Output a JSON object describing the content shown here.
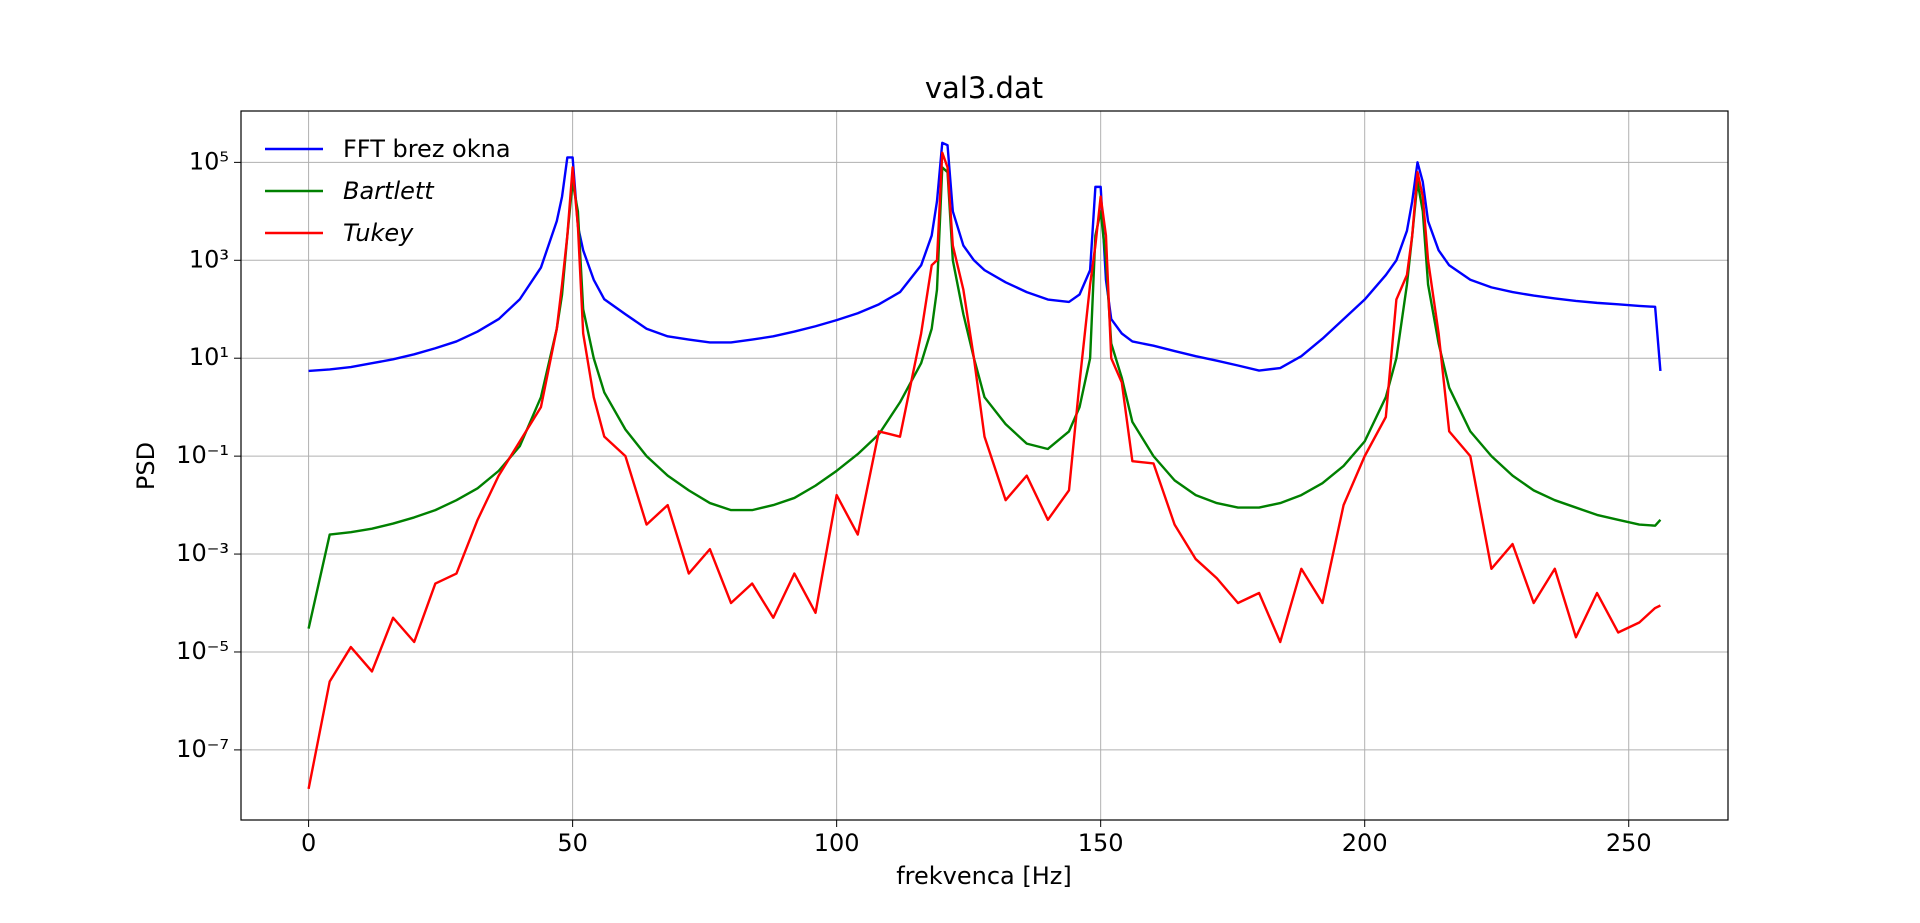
{
  "chart_data": {
    "type": "line",
    "title": "val3.dat",
    "xlabel": "frekvenca [Hz]",
    "ylabel": "PSD",
    "log_y": true,
    "grid": true,
    "legend": "upper left",
    "xlim": [
      -12.8,
      268.8
    ],
    "ylim": [
      3.7e-09,
      1120000.0
    ],
    "xticks": [
      0,
      50,
      100,
      150,
      200,
      250
    ],
    "yticks": [
      {
        "value": 1e-07,
        "label": "10⁻⁷"
      },
      {
        "value": 1e-05,
        "label": "10⁻⁵"
      },
      {
        "value": 0.001,
        "label": "10⁻³"
      },
      {
        "value": 0.1,
        "label": "10⁻¹"
      },
      {
        "value": 10,
        "label": "10¹"
      },
      {
        "value": 1000,
        "label": "10³"
      },
      {
        "value": 100000,
        "label": "10⁵"
      }
    ],
    "x": [
      0,
      4,
      8,
      12,
      16,
      20,
      24,
      28,
      32,
      36,
      40,
      44,
      47,
      48,
      49,
      50,
      51,
      52,
      54,
      56,
      60,
      64,
      68,
      72,
      76,
      80,
      84,
      88,
      92,
      96,
      100,
      104,
      108,
      112,
      116,
      118,
      119,
      120,
      121,
      122,
      124,
      126,
      128,
      132,
      136,
      140,
      144,
      146,
      148,
      149,
      150,
      151,
      152,
      154,
      156,
      160,
      164,
      168,
      172,
      176,
      180,
      184,
      188,
      192,
      196,
      200,
      204,
      206,
      208,
      209,
      210,
      211,
      212,
      214,
      216,
      220,
      224,
      228,
      232,
      236,
      240,
      244,
      248,
      252,
      255,
      256
    ],
    "series": [
      {
        "name": "FFT brez okna",
        "color": "#0000ff",
        "values": [
          5.5,
          5.9,
          6.6,
          7.9,
          9.5,
          12,
          16,
          22,
          35,
          63,
          160,
          710,
          6300,
          20000,
          126000,
          126000,
          5000,
          1600,
          400,
          160,
          79,
          40,
          28,
          24,
          21,
          21,
          24,
          28,
          35,
          45,
          60,
          83,
          126,
          224,
          790,
          3200,
          16000,
          251000,
          224000,
          10000,
          2000,
          1000,
          630,
          355,
          224,
          158,
          141,
          200,
          630,
          31600,
          31600,
          400,
          63,
          32,
          22,
          18,
          14,
          11,
          8.9,
          7.1,
          5.6,
          6.3,
          11,
          25,
          63,
          158,
          500,
          1000,
          4000,
          16000,
          100000,
          40000,
          6300,
          1600,
          790,
          400,
          280,
          224,
          190,
          166,
          148,
          135,
          126,
          117,
          112,
          5.5
        ]
      },
      {
        "name": "Bartlett",
        "color": "#008000",
        "values": [
          3e-05,
          0.0025,
          0.0028,
          0.0033,
          0.0042,
          0.0056,
          0.0079,
          0.0126,
          0.022,
          0.05,
          0.16,
          1.6,
          40,
          200,
          3200,
          40000,
          10000,
          100,
          10,
          2.0,
          0.35,
          0.1,
          0.04,
          0.02,
          0.011,
          0.0079,
          0.0079,
          0.01,
          0.014,
          0.025,
          0.05,
          0.11,
          0.28,
          1.26,
          7.9,
          40,
          250,
          79000,
          63000,
          1000,
          79,
          10,
          1.6,
          0.45,
          0.18,
          0.14,
          0.32,
          1.0,
          10,
          3200,
          10000,
          1000,
          20,
          4.0,
          0.5,
          0.1,
          0.032,
          0.016,
          0.011,
          0.0089,
          0.0089,
          0.011,
          0.016,
          0.028,
          0.063,
          0.2,
          1.6,
          10,
          320,
          3200,
          40000,
          10000,
          320,
          20,
          2.5,
          0.32,
          0.1,
          0.04,
          0.02,
          0.0126,
          0.0089,
          0.0063,
          0.005,
          0.004,
          0.0038,
          0.005
        ]
      },
      {
        "name": "Tukey",
        "color": "#ff0000",
        "values": [
          1.6e-08,
          2.5e-06,
          1.26e-05,
          4e-06,
          5e-05,
          1.6e-05,
          0.00025,
          0.0004,
          0.005,
          0.04,
          0.2,
          1.0,
          40,
          320,
          3200,
          79000,
          5000,
          32,
          1.6,
          0.25,
          0.1,
          0.004,
          0.01,
          0.0004,
          0.00126,
          0.0001,
          0.00025,
          5e-05,
          0.0004,
          6.3e-05,
          0.016,
          0.0025,
          0.32,
          0.25,
          32,
          790,
          1000,
          158000,
          79000,
          2000,
          250,
          10,
          0.25,
          0.0126,
          0.04,
          0.005,
          0.02,
          3.2,
          320,
          2000,
          20000,
          3200,
          10,
          3.2,
          0.079,
          0.071,
          0.004,
          0.00079,
          0.00032,
          0.0001,
          0.00016,
          1.6e-05,
          0.0005,
          0.0001,
          0.01,
          0.1,
          0.63,
          158,
          500,
          3200,
          63000,
          20000,
          1000,
          32,
          0.32,
          0.1,
          0.0005,
          0.0016,
          0.0001,
          0.0005,
          2e-05,
          0.00016,
          2.5e-05,
          4e-05,
          7.9e-05,
          8.9e-05
        ]
      }
    ]
  }
}
